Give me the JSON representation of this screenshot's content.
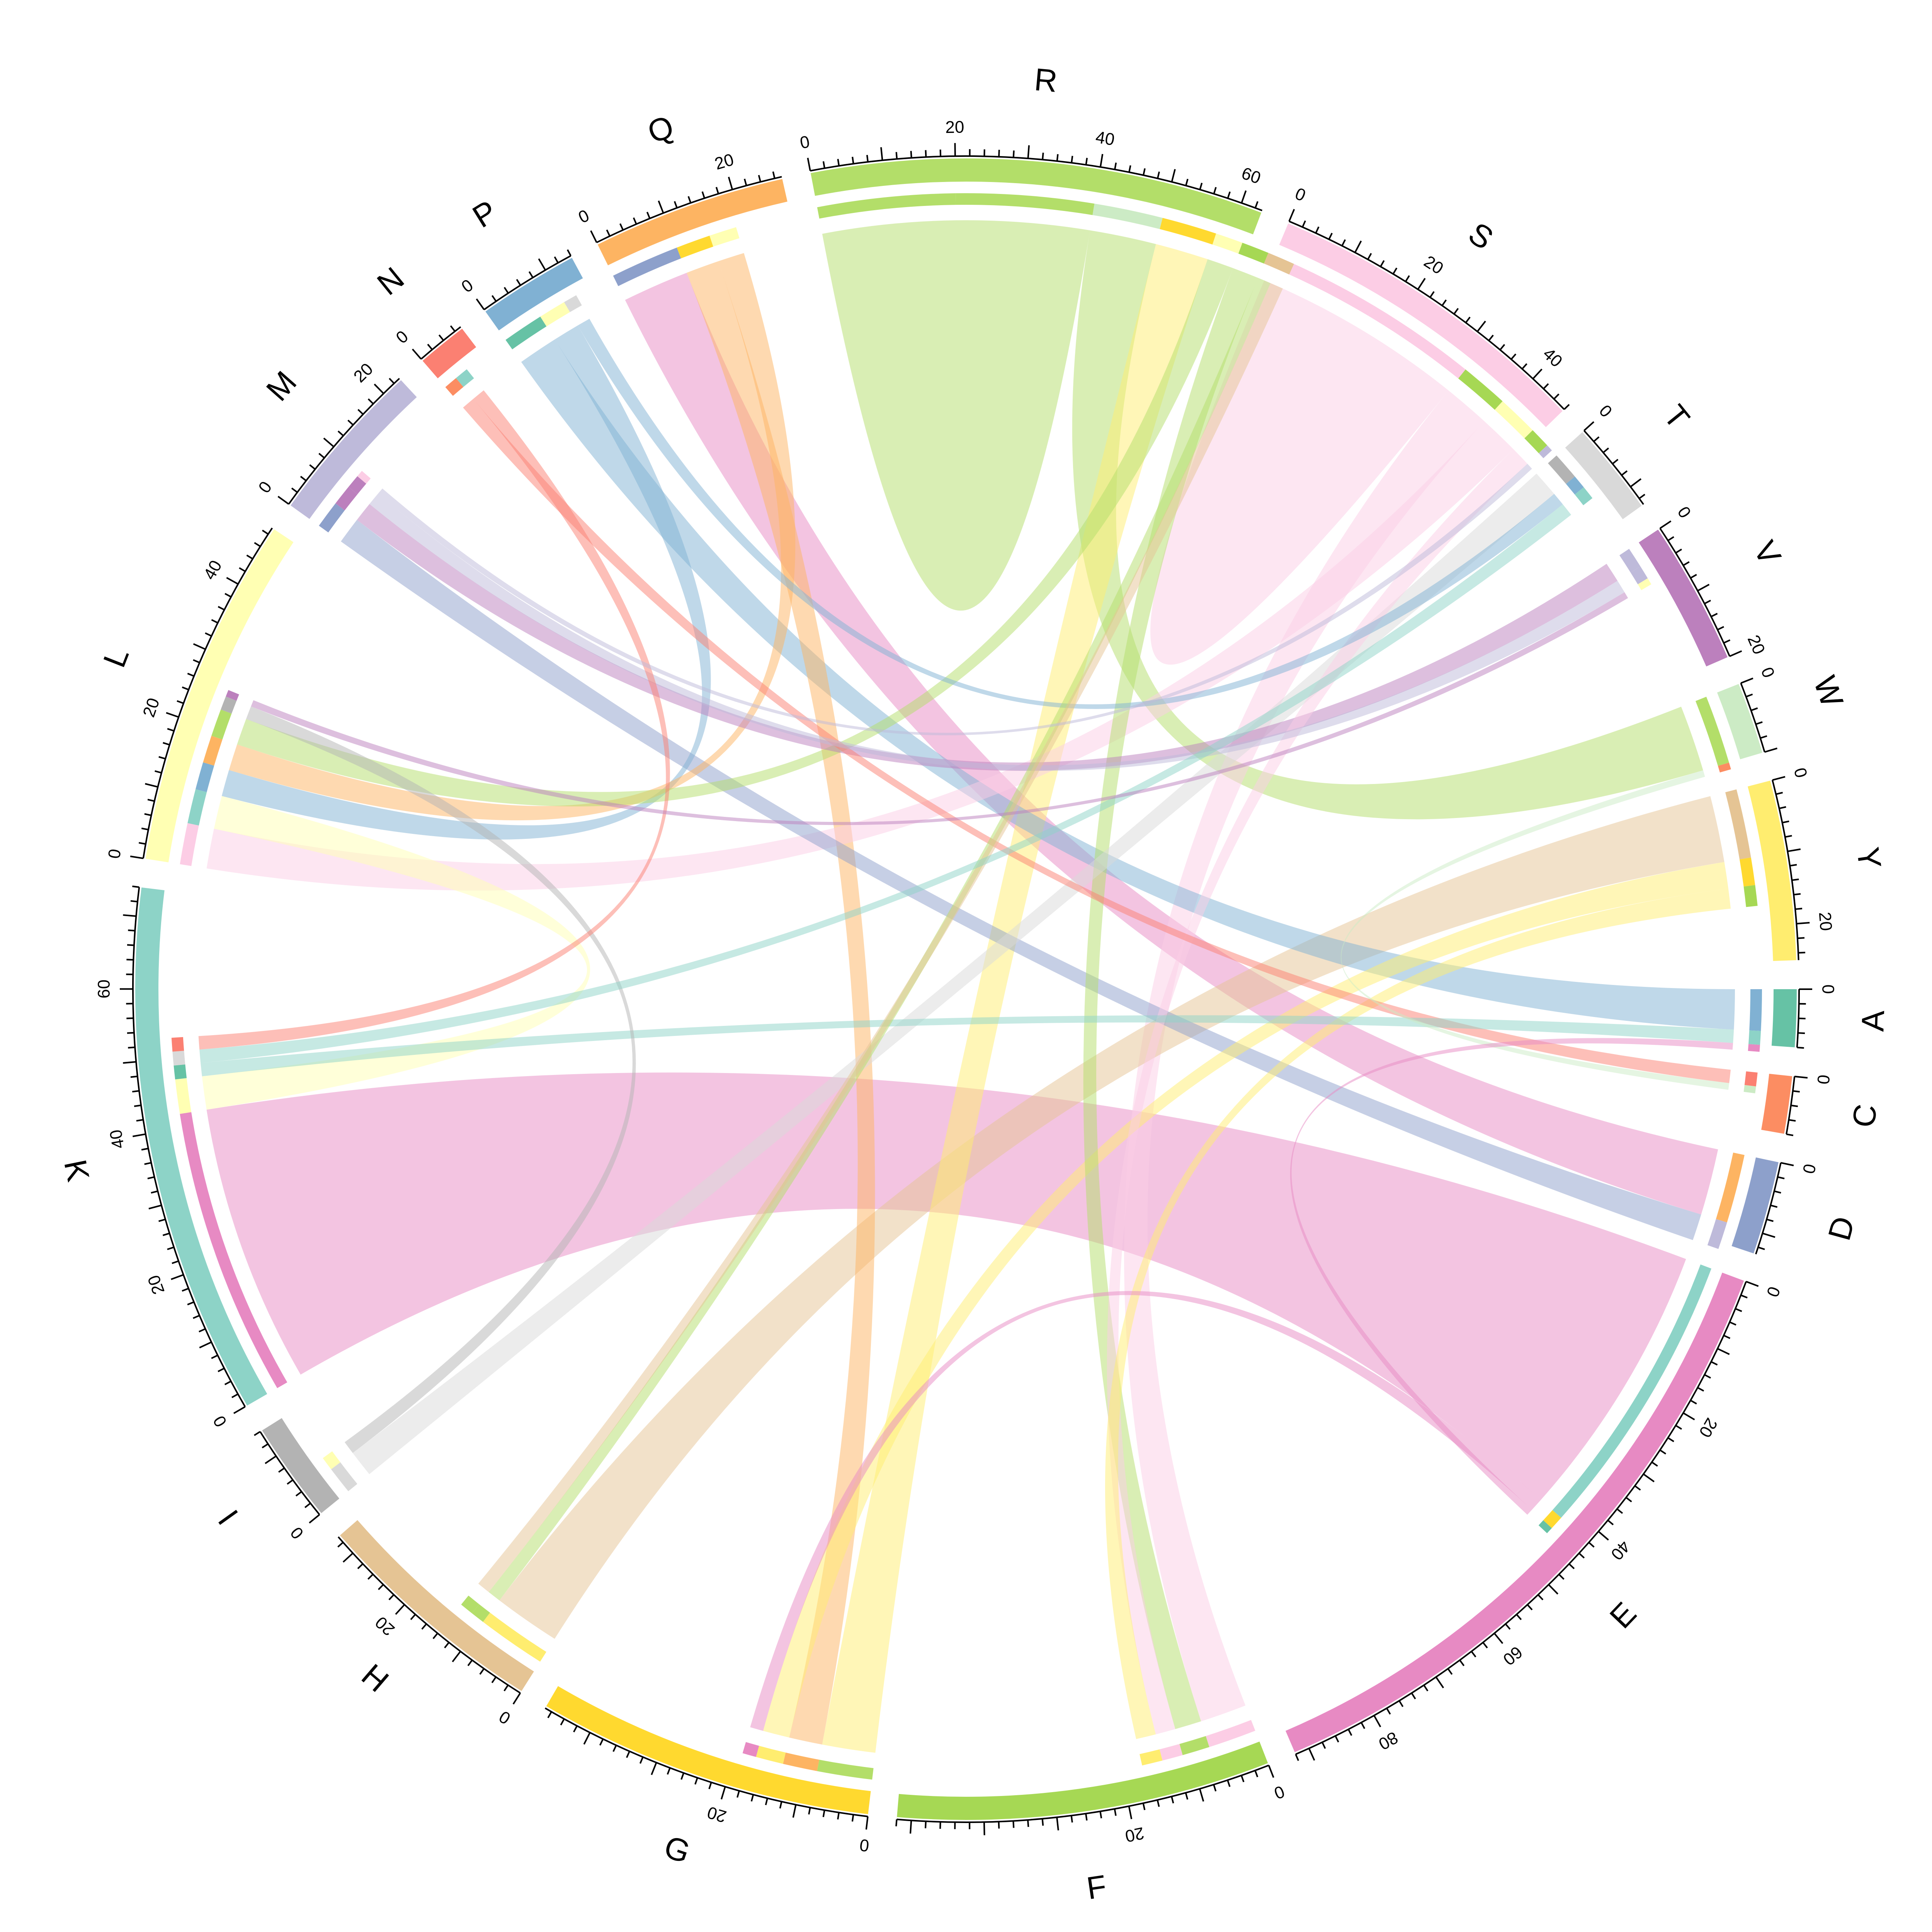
{
  "chart_data": {
    "type": "chord",
    "title": "",
    "sectors": [
      {
        "name": "A",
        "total": 8,
        "color": "#66C2A5",
        "ticks": [
          "0"
        ]
      },
      {
        "name": "C",
        "total": 8,
        "color": "#FC8D62",
        "ticks": [
          "0"
        ]
      },
      {
        "name": "D",
        "total": 13,
        "color": "#8DA0CB",
        "ticks": [
          "0"
        ]
      },
      {
        "name": "E",
        "total": 92,
        "color": "#E78AC3",
        "ticks": [
          "0",
          "20",
          "40",
          "60",
          "80"
        ]
      },
      {
        "name": "F",
        "total": 52,
        "color": "#A6D854",
        "ticks": [
          "0",
          "20"
        ]
      },
      {
        "name": "G",
        "total": 47,
        "color": "#FFD92F",
        "ticks": [
          "0",
          "20"
        ]
      },
      {
        "name": "H",
        "total": 33,
        "color": "#E5C494",
        "ticks": [
          "0",
          "20"
        ]
      },
      {
        "name": "I",
        "total": 14,
        "color": "#B3B3B3",
        "ticks": [
          "0"
        ]
      },
      {
        "name": "K",
        "total": 74,
        "color": "#8DD3C7",
        "ticks": [
          "0",
          "20",
          "40",
          "60"
        ]
      },
      {
        "name": "L",
        "total": 49,
        "color": "#FFFFB3",
        "ticks": [
          "0",
          "20",
          "40"
        ]
      },
      {
        "name": "M",
        "total": 23,
        "color": "#BEBADA",
        "ticks": [
          "0",
          "20"
        ]
      },
      {
        "name": "N",
        "total": 7,
        "color": "#FB8072",
        "ticks": [
          "0"
        ]
      },
      {
        "name": "P",
        "total": 14,
        "color": "#80B1D3",
        "ticks": [
          "0"
        ]
      },
      {
        "name": "Q",
        "total": 27,
        "color": "#FDB462",
        "ticks": [
          "0",
          "20"
        ]
      },
      {
        "name": "R",
        "total": 63,
        "color": "#B3DE69",
        "ticks": [
          "0",
          "20",
          "40",
          "60"
        ]
      },
      {
        "name": "S",
        "total": 46,
        "color": "#FCCDE5",
        "ticks": [
          "0",
          "20",
          "40"
        ]
      },
      {
        "name": "T",
        "total": 13,
        "color": "#D9D9D9",
        "ticks": [
          "0"
        ]
      },
      {
        "name": "V",
        "total": 20,
        "color": "#BC80BD",
        "ticks": [
          "0",
          "20"
        ]
      },
      {
        "name": "W",
        "total": 10,
        "color": "#CCEBC5",
        "ticks": [
          "0"
        ]
      },
      {
        "name": "Y",
        "total": 25,
        "color": "#FFED6F",
        "ticks": [
          "0",
          "20"
        ]
      }
    ],
    "links": [
      {
        "from": "K",
        "to": "E",
        "value": 42,
        "color": "#E78AC3"
      },
      {
        "from": "R",
        "to": "R",
        "value": 20,
        "color": "#B3DE69"
      },
      {
        "from": "S",
        "to": "S",
        "value": 16,
        "color": "#FCCDE5"
      },
      {
        "from": "Q",
        "to": "D",
        "value": 10,
        "color": "#E78AC3"
      },
      {
        "from": "W",
        "to": "R",
        "value": 10,
        "color": "#B3DE69"
      },
      {
        "from": "F",
        "to": "S",
        "value": 7,
        "color": "#FCCDE5"
      },
      {
        "from": "Y",
        "to": "H",
        "value": 10,
        "color": "#E5C494"
      },
      {
        "from": "G",
        "to": "R",
        "value": 8,
        "color": "#FFED6F"
      },
      {
        "from": "P",
        "to": "A",
        "value": 6,
        "color": "#80B1D3"
      },
      {
        "from": "Q",
        "to": "G",
        "value": 5,
        "color": "#FDB462"
      },
      {
        "from": "L",
        "to": "S",
        "value": 6,
        "color": "#FCCDE5"
      },
      {
        "from": "L",
        "to": "K",
        "value": 5,
        "color": "#FFFFB3"
      },
      {
        "from": "D",
        "to": "M",
        "value": 4,
        "color": "#8DA0CB"
      },
      {
        "from": "Y",
        "to": "G",
        "value": 4,
        "color": "#FFED6F"
      },
      {
        "from": "L",
        "to": "P",
        "value": 4,
        "color": "#80B1D3"
      },
      {
        "from": "L",
        "to": "Q",
        "value": 4,
        "color": "#FDB462"
      },
      {
        "from": "L",
        "to": "R",
        "value": 4,
        "color": "#B3DE69"
      },
      {
        "from": "R",
        "to": "F",
        "value": 4,
        "color": "#B3DE69"
      },
      {
        "from": "T",
        "to": "I",
        "value": 4,
        "color": "#D9D9D9"
      },
      {
        "from": "V",
        "to": "M",
        "value": 3,
        "color": "#BC80BD"
      },
      {
        "from": "S",
        "to": "F",
        "value": 3,
        "color": "#FCCDE5"
      },
      {
        "from": "Y",
        "to": "F",
        "value": 3,
        "color": "#FFED6F"
      },
      {
        "from": "C",
        "to": "N",
        "value": 2,
        "color": "#FB8072"
      },
      {
        "from": "A",
        "to": "K",
        "value": 2,
        "color": "#8DD3C7"
      },
      {
        "from": "E",
        "to": "G",
        "value": 2,
        "color": "#E78AC3"
      },
      {
        "from": "P",
        "to": "T",
        "value": 2,
        "color": "#80B1D3"
      },
      {
        "from": "M",
        "to": "V",
        "value": 2,
        "color": "#BEBADA"
      },
      {
        "from": "I",
        "to": "L",
        "value": 2,
        "color": "#B3B3B3"
      },
      {
        "from": "R",
        "to": "H",
        "value": 2,
        "color": "#B3DE69"
      },
      {
        "from": "H",
        "to": "R",
        "value": 2,
        "color": "#E5C494"
      },
      {
        "from": "K",
        "to": "T",
        "value": 2,
        "color": "#8DD3C7"
      },
      {
        "from": "N",
        "to": "K",
        "value": 2,
        "color": "#FB8072"
      },
      {
        "from": "V",
        "to": "L",
        "value": 1,
        "color": "#BC80BD"
      },
      {
        "from": "W",
        "to": "C",
        "value": 1,
        "color": "#CCEBC5"
      },
      {
        "from": "E",
        "to": "A",
        "value": 1,
        "color": "#E78AC3"
      },
      {
        "from": "M",
        "to": "S",
        "value": 1,
        "color": "#BEBADA"
      }
    ]
  }
}
